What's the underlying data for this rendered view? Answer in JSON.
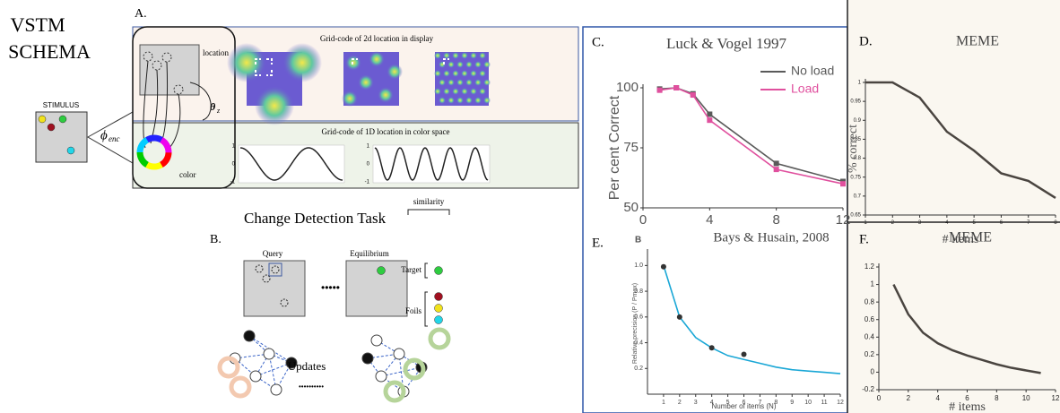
{
  "schema": {
    "title_lines": [
      "VSTM",
      "SCHEMA"
    ],
    "stimulus": "STIMULUS",
    "encoder": "ϕ",
    "encoder_sub": "enc",
    "panel_a": "A.",
    "grid_2d": "Grid-code of 2d location in display",
    "location": "location",
    "theta": "θ",
    "theta_sub": "z",
    "grid_1d": "Grid-code of 1D location in color space",
    "color": "color",
    "sine_ticks": [
      1,
      0,
      -1
    ],
    "panel_b": "B.",
    "task": "Change Detection Task",
    "similarity": "similarity",
    "query": "Query",
    "equilibrium": "Equilibrium",
    "target": "Target",
    "foils": "Foils",
    "updates": "Updates"
  },
  "chart_data": [
    {
      "type": "line",
      "panel": "C.",
      "title": "Luck & Vogel 1997",
      "y_label": "Per cent Correct",
      "x": [
        1,
        2,
        3,
        4,
        8,
        12
      ],
      "xlim": [
        0,
        12
      ],
      "xticks": [
        0,
        4,
        8,
        12
      ],
      "ylim": [
        50,
        100
      ],
      "yticks": [
        50,
        75,
        100
      ],
      "legend": "upper right",
      "markers": true,
      "series": [
        {
          "name": "No load",
          "color": "#5a5a5a",
          "values": [
            99.5,
            100,
            97.5,
            89,
            68.5,
            61
          ]
        },
        {
          "name": "Load",
          "color": "#e0509e",
          "values": [
            99,
            100,
            97,
            86.5,
            66,
            60
          ]
        }
      ]
    },
    {
      "type": "line",
      "panel": "D.",
      "title": "MEME",
      "y_label": "% correct",
      "x_label": "# items",
      "x": [
        1,
        2,
        3,
        4,
        5,
        6,
        7,
        8
      ],
      "values": [
        1,
        1,
        0.96,
        0.87,
        0.82,
        0.76,
        0.74,
        0.695
      ],
      "color": "#4a4540",
      "xlim": [
        1,
        8
      ],
      "xticks": [
        1,
        2,
        3,
        4,
        5,
        6,
        7,
        8
      ],
      "ylim": [
        0.65,
        1
      ],
      "yticks": [
        0.65,
        0.7,
        0.75,
        0.8,
        0.85,
        0.9,
        0.95,
        1
      ]
    },
    {
      "type": "scatter",
      "panel": "E.",
      "sub_panel": "B",
      "title": "Bays & Husain, 2008",
      "y_label": "Relative precision (P / Pmax)",
      "x_label": "Number of items (N)",
      "x": [
        1,
        2,
        4,
        6
      ],
      "values": [
        0.99,
        0.6,
        0.36,
        0.31
      ],
      "color": "#333333",
      "fit": {
        "x": [
          1,
          2,
          3,
          4,
          5,
          6,
          7,
          8,
          9,
          10,
          11,
          12
        ],
        "values": [
          1,
          0.6,
          0.44,
          0.36,
          0.3,
          0.27,
          0.24,
          0.21,
          0.19,
          0.18,
          0.17,
          0.16
        ],
        "color": "#1aa7d6"
      },
      "xlim": [
        0,
        12
      ],
      "xticks": [
        1,
        2,
        3,
        4,
        5,
        6,
        7,
        8,
        9,
        10,
        11,
        12
      ],
      "ylim": [
        0,
        1.1
      ],
      "yticks": [
        0.2,
        0.4,
        0.6,
        0.8,
        {
          "value": 1,
          "label": "1.0"
        }
      ]
    },
    {
      "type": "line",
      "panel": "F.",
      "title": "MEME",
      "x_label": "# items",
      "x": [
        1,
        2,
        3,
        4,
        5,
        6,
        7,
        8,
        9,
        10,
        11
      ],
      "values": [
        1,
        0.66,
        0.45,
        0.33,
        0.25,
        0.19,
        0.14,
        0.09,
        0.05,
        0.02,
        -0.01
      ],
      "color": "#4a4540",
      "xlim": [
        0,
        12
      ],
      "xticks": [
        0,
        2,
        4,
        6,
        8,
        10,
        12
      ],
      "ylim": [
        -0.2,
        1.2
      ],
      "yticks": [
        -0.2,
        0,
        0.2,
        0.4,
        0.6,
        0.8,
        1,
        1.2
      ]
    }
  ]
}
